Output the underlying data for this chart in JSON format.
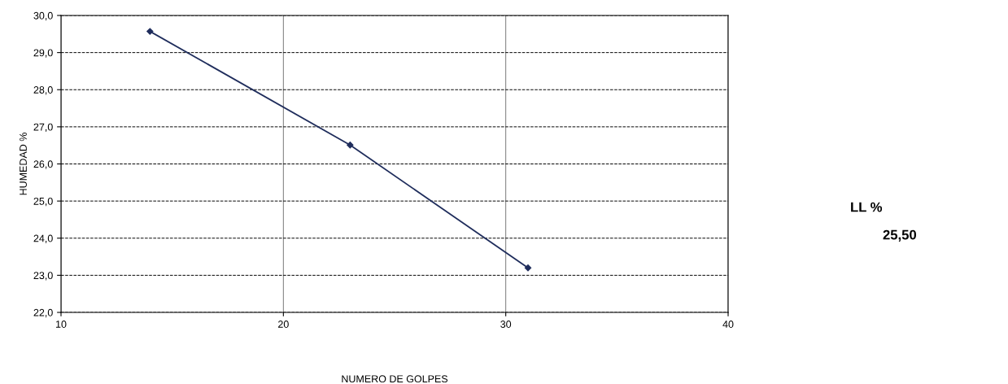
{
  "chart_data": {
    "type": "line",
    "xlabel": "NUMERO DE GOLPES",
    "ylabel": "HUMEDAD %",
    "x": [
      14,
      23,
      31
    ],
    "series": [
      {
        "color": "#1f2d5c",
        "values": [
          29.57,
          26.51,
          23.2
        ]
      }
    ],
    "xlim": [
      10,
      40
    ],
    "xticks": [
      10,
      20,
      30,
      40
    ],
    "ylim": [
      22,
      30
    ],
    "yticks": [
      {
        "value": 22,
        "label": "22,0"
      },
      {
        "value": 23,
        "label": "23,0"
      },
      {
        "value": 24,
        "label": "24,0"
      },
      {
        "value": 25,
        "label": "25,0"
      },
      {
        "value": 26,
        "label": "26,0"
      },
      {
        "value": 27,
        "label": "27,0"
      },
      {
        "value": 28,
        "label": "28,0"
      },
      {
        "value": 29,
        "label": "29,0"
      },
      {
        "value": 30,
        "label": "30,0"
      }
    ],
    "grid": true,
    "marker": "diamond",
    "line_style": "solid",
    "legend": false,
    "annotations": [
      "LL %",
      "25,50"
    ]
  }
}
